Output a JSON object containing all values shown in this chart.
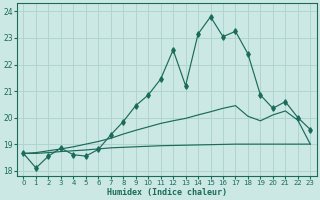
{
  "title": "",
  "xlabel": "Humidex (Indice chaleur)",
  "ylabel": "",
  "xlim": [
    -0.5,
    23.5
  ],
  "ylim": [
    17.8,
    24.3
  ],
  "xticks": [
    0,
    1,
    2,
    3,
    4,
    5,
    6,
    7,
    8,
    9,
    10,
    11,
    12,
    13,
    14,
    15,
    16,
    17,
    18,
    19,
    20,
    21,
    22,
    23
  ],
  "yticks": [
    18,
    19,
    20,
    21,
    22,
    23,
    24
  ],
  "bg_color": "#cce8e4",
  "grid_color": "#b0d4d0",
  "line_color": "#1a6b5a",
  "line1_x": [
    0,
    1,
    2,
    3,
    4,
    5,
    6,
    7,
    8,
    9,
    10,
    11,
    12,
    13,
    14,
    15,
    16,
    17,
    18,
    19,
    20,
    21,
    22,
    23
  ],
  "line1_y": [
    18.65,
    18.1,
    18.55,
    18.85,
    18.6,
    18.55,
    18.8,
    19.35,
    19.85,
    20.45,
    20.85,
    21.45,
    22.55,
    21.2,
    23.15,
    23.8,
    23.05,
    23.25,
    22.4,
    20.85,
    20.35,
    20.6,
    20.0,
    19.55
  ],
  "line2_x": [
    0,
    1,
    2,
    3,
    4,
    5,
    6,
    7,
    8,
    9,
    10,
    11,
    12,
    13,
    14,
    15,
    16,
    17,
    18,
    23
  ],
  "line2_y": [
    18.65,
    18.65,
    18.68,
    18.72,
    18.75,
    18.78,
    18.82,
    18.86,
    18.88,
    18.9,
    18.92,
    18.94,
    18.95,
    18.96,
    18.97,
    18.98,
    18.99,
    19.0,
    19.0,
    19.0
  ],
  "line3_x": [
    0,
    1,
    2,
    3,
    4,
    5,
    6,
    7,
    8,
    9,
    10,
    11,
    12,
    13,
    14,
    15,
    16,
    17,
    18,
    19,
    20,
    21,
    22,
    23
  ],
  "line3_y": [
    18.65,
    18.68,
    18.75,
    18.82,
    18.9,
    19.0,
    19.1,
    19.22,
    19.38,
    19.52,
    19.65,
    19.78,
    19.88,
    19.97,
    20.1,
    20.22,
    20.35,
    20.45,
    20.05,
    19.88,
    20.1,
    20.25,
    19.9,
    19.0
  ]
}
